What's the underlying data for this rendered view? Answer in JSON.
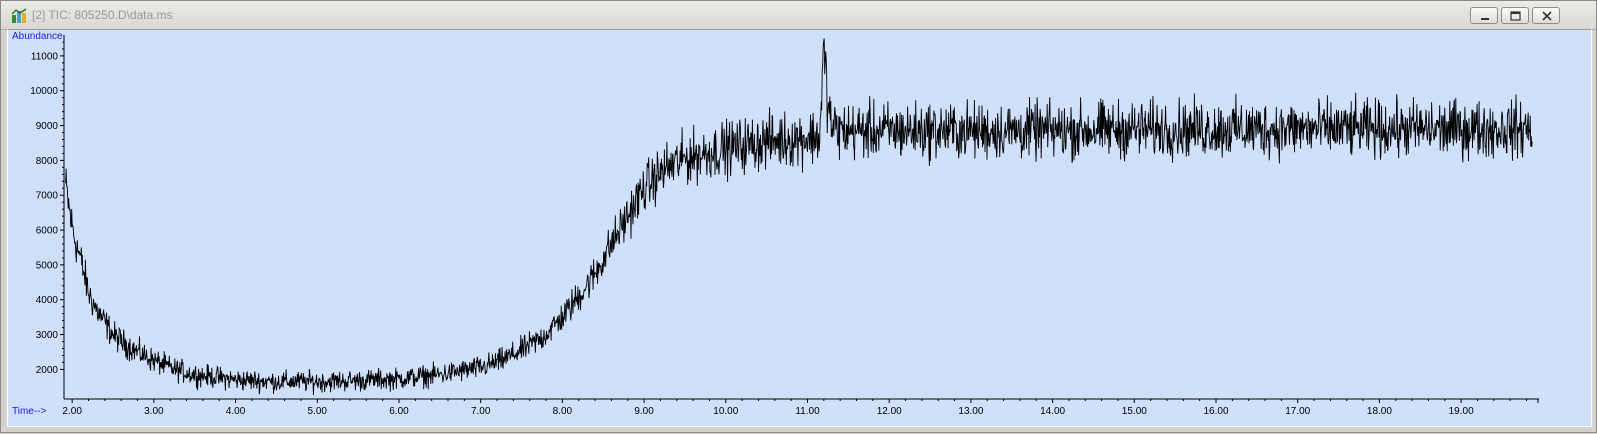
{
  "window": {
    "title": "[2] TIC: 805250.D\\data.ms",
    "buttons": [
      "minimize",
      "restore",
      "close"
    ]
  },
  "colors": {
    "plot_bg": "#cfe0fb",
    "trace": "#000000",
    "axis_label": "#1a1aff"
  },
  "chart_data": {
    "type": "line",
    "title": "",
    "xlabel": "Time-->",
    "ylabel": "Abundance",
    "xlim": [
      1.9,
      20.1
    ],
    "ylim": [
      1150,
      11600
    ],
    "x_ticks": [
      2,
      3,
      4,
      5,
      6,
      7,
      8,
      9,
      10,
      11,
      12,
      13,
      14,
      15,
      16,
      17,
      18,
      19
    ],
    "x_tick_labels": [
      "2.00",
      "3.00",
      "4.00",
      "5.00",
      "6.00",
      "7.00",
      "8.00",
      "9.00",
      "10.00",
      "11.00",
      "12.00",
      "13.00",
      "14.00",
      "15.00",
      "16.00",
      "17.00",
      "18.00",
      "19.00"
    ],
    "y_ticks": [
      2000,
      3000,
      4000,
      5000,
      6000,
      7000,
      8000,
      9000,
      10000,
      11000
    ],
    "y_tick_labels": [
      "2000",
      "3000",
      "4000",
      "5000",
      "6000",
      "7000",
      "8000",
      "9000",
      "10000",
      "11000"
    ],
    "grid": false,
    "series": [
      {
        "x": [
          1.9,
          1.95,
          2.0,
          2.05,
          2.1,
          2.15,
          2.2,
          2.3,
          2.4,
          2.5,
          2.6,
          2.8,
          3.0,
          3.25,
          3.5,
          4.0,
          4.5,
          5.0,
          5.5,
          6.0,
          6.5,
          7.0,
          7.25,
          7.5,
          7.75,
          8.0,
          8.2,
          8.4,
          8.6,
          8.8,
          9.0,
          9.25,
          9.5,
          9.75,
          10.0,
          10.25,
          10.5,
          10.75,
          11.0,
          11.15,
          11.2,
          11.25,
          11.3,
          11.4,
          11.6,
          11.8,
          12.0,
          13.0,
          14.0,
          15.0,
          16.0,
          17.0,
          18.0,
          19.0,
          20.0
        ],
        "y": [
          7600,
          6800,
          6100,
          5600,
          5200,
          4700,
          4200,
          3700,
          3350,
          3000,
          2800,
          2500,
          2250,
          2000,
          1850,
          1700,
          1650,
          1650,
          1680,
          1730,
          1850,
          2050,
          2250,
          2550,
          2900,
          3500,
          4100,
          4750,
          5600,
          6400,
          7200,
          7750,
          8050,
          8200,
          8350,
          8450,
          8550,
          8600,
          8650,
          8700,
          11300,
          9600,
          8950,
          8850,
          8850,
          8850,
          8850,
          8850,
          8850,
          8900,
          8900,
          8900,
          8900,
          8900,
          8900
        ]
      }
    ]
  }
}
